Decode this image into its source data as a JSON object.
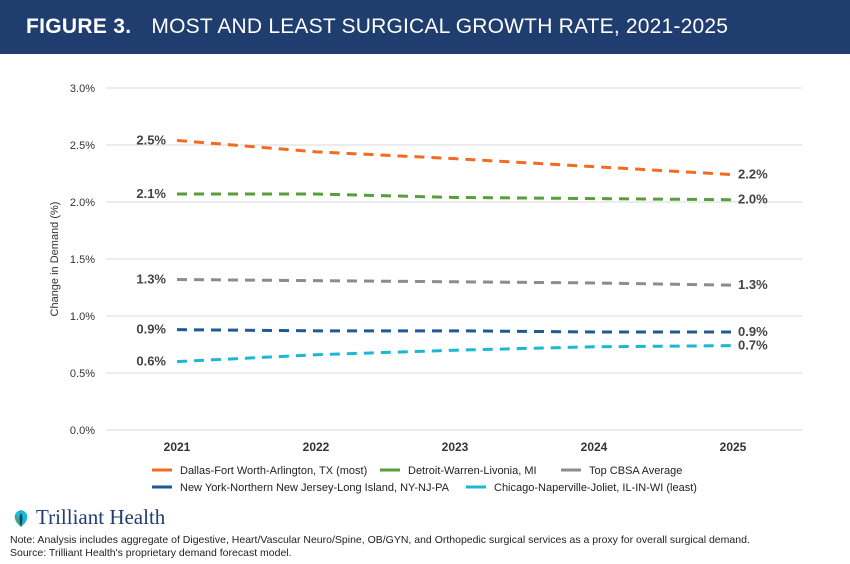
{
  "header": {
    "figure_number": "FIGURE 3.",
    "title": "MOST AND LEAST SURGICAL GROWTH RATE, 2021-2025"
  },
  "chart_data": {
    "type": "line",
    "title": "MOST AND LEAST SURGICAL GROWTH RATE, 2021-2025",
    "xlabel": "",
    "ylabel": "Change in Demand (%)",
    "x": [
      "2021",
      "2022",
      "2023",
      "2024",
      "2025"
    ],
    "ylim": [
      0,
      3.0
    ],
    "yticks": [
      0,
      0.5,
      1.0,
      1.5,
      2.0,
      2.5,
      3.0
    ],
    "ytick_labels": [
      "0.0%",
      "0.5%",
      "1.0%",
      "1.5%",
      "2.0%",
      "2.5%",
      "3.0%"
    ],
    "grid": true,
    "legend_position": "bottom",
    "series": [
      {
        "name": "Dallas-Fort Worth-Arlington, TX (most)",
        "color": "#f26b21",
        "values": [
          2.54,
          2.44,
          2.38,
          2.31,
          2.24
        ],
        "start_label": "2.5%",
        "end_label": "2.2%"
      },
      {
        "name": "Detroit-Warren-Livonia, MI",
        "color": "#5a9e3a",
        "values": [
          2.07,
          2.07,
          2.04,
          2.03,
          2.02
        ],
        "start_label": "2.1%",
        "end_label": "2.0%"
      },
      {
        "name": "Top CBSA Average",
        "color": "#8c8c8c",
        "values": [
          1.32,
          1.31,
          1.3,
          1.29,
          1.27
        ],
        "start_label": "1.3%",
        "end_label": "1.3%"
      },
      {
        "name": "New York-Northern New Jersey-Long Island, NY-NJ-PA",
        "color": "#1f5a96",
        "values": [
          0.88,
          0.87,
          0.87,
          0.86,
          0.86
        ],
        "start_label": "0.9%",
        "end_label": "0.9%"
      },
      {
        "name": "Chicago-Naperville-Joliet, IL-IN-WI (least)",
        "color": "#1bb8d4",
        "values": [
          0.6,
          0.66,
          0.7,
          0.73,
          0.74
        ],
        "start_label": "0.6%",
        "end_label": "0.7%"
      }
    ]
  },
  "logo": {
    "text": "Trilliant Health"
  },
  "notes": {
    "note": "Note: Analysis includes aggregate of Digestive, Heart/Vascular Neuro/Spine, OB/GYN, and Orthopedic surgical services as a proxy for overall surgical demand.",
    "source": "Source: Trilliant Health's proprietary demand forecast model."
  }
}
